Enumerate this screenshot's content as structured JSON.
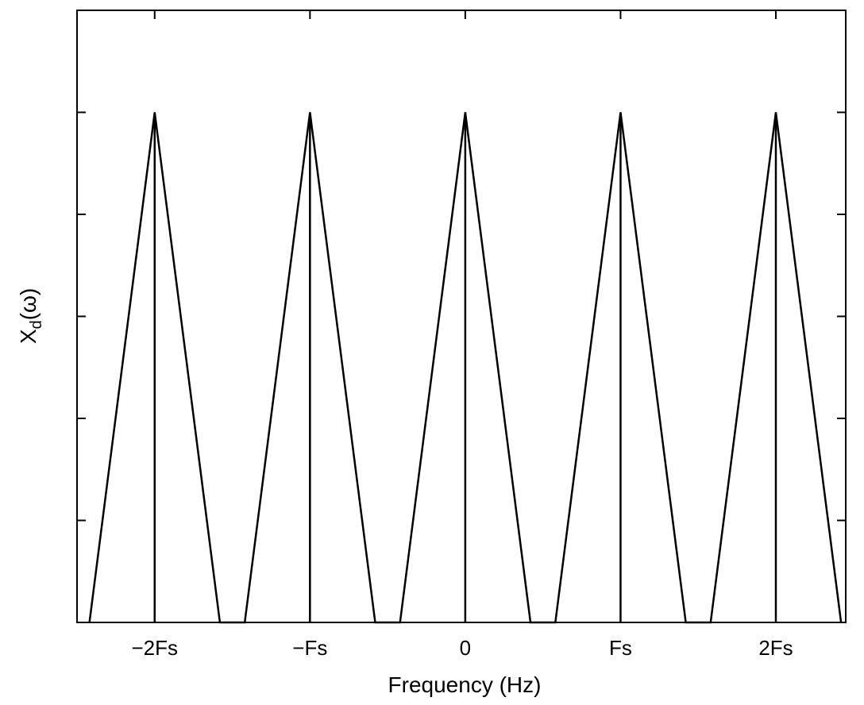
{
  "chart_data": {
    "type": "line",
    "xlabel": "Frequency (Hz)",
    "ylabel_main": "X",
    "ylabel_sub": "d",
    "ylabel_tail": "(ω)",
    "xlim": [
      -2.5,
      2.45
    ],
    "ylim": [
      0,
      1.2
    ],
    "x_ticks": [
      {
        "value": -2,
        "label": "−2Fs"
      },
      {
        "value": -1,
        "label": "−Fs"
      },
      {
        "value": 0,
        "label": "0"
      },
      {
        "value": 1,
        "label": "Fs"
      },
      {
        "value": 2,
        "label": "2Fs"
      }
    ],
    "y_ticks": [
      0,
      0.2,
      0.4,
      0.6,
      0.8,
      1.0,
      1.2
    ],
    "y_tick_labels_shown": false,
    "grid": false,
    "series": [
      {
        "x": [
          -2.42,
          -2.0,
          -1.58,
          -1.42,
          -1.0,
          -0.58,
          -0.42,
          0.0,
          0.42,
          0.58,
          1.0,
          1.42,
          1.58,
          2.0,
          2.42
        ],
        "y": [
          0,
          1.0,
          0,
          0,
          1.0,
          0,
          0,
          1.0,
          0,
          0,
          1.0,
          0,
          0,
          1.0,
          0
        ],
        "color": "#000000"
      }
    ],
    "stems": [
      {
        "x": -2,
        "y": 1.0
      },
      {
        "x": -1,
        "y": 1.0
      },
      {
        "x": 0,
        "y": 1.0
      },
      {
        "x": 1,
        "y": 1.0
      },
      {
        "x": 2,
        "y": 1.0
      }
    ]
  }
}
